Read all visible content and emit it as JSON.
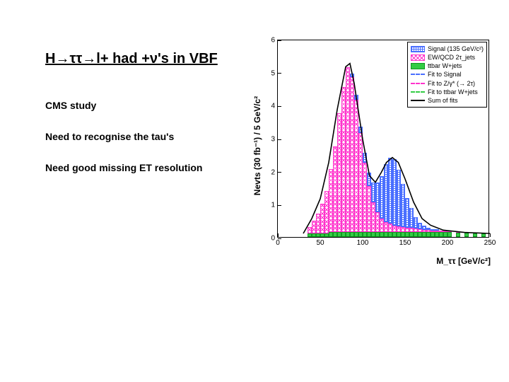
{
  "text": {
    "title": "H→ττ→l+ had +ν's in VBF",
    "note1": "CMS study",
    "note2": "Need to recognise the tau's",
    "note3": "Need good missing ET resolution"
  },
  "chart": {
    "type": "stacked-histogram",
    "x_label": "M_ττ [GeV/c²]",
    "y_label": "Nevts (30 fb⁻¹) / 5 GeV/c²",
    "xlim": [
      0,
      250
    ],
    "ylim": [
      0,
      6
    ],
    "x_ticks": [
      0,
      50,
      100,
      150,
      200,
      250
    ],
    "y_ticks": [
      0,
      1,
      2,
      3,
      4,
      5,
      6
    ],
    "bin_width": 5,
    "series_order": [
      "ttbar",
      "ewqcd",
      "signal"
    ],
    "colors": {
      "signal": "#4a6fff",
      "ewqcd": "#ff33cc",
      "ttbar": "#33cc44",
      "fit_signal": "#4a6fff",
      "fit_zgamma": "#ff33cc",
      "fit_ttbar": "#33cc44",
      "fit_sum": "#000000",
      "background": "#ffffff",
      "axis": "#000000"
    },
    "bins": [
      {
        "x": 35,
        "ttbar": 0.1,
        "ewqcd": 0.2,
        "signal": 0.0
      },
      {
        "x": 40,
        "ttbar": 0.1,
        "ewqcd": 0.4,
        "signal": 0.0
      },
      {
        "x": 45,
        "ttbar": 0.1,
        "ewqcd": 0.6,
        "signal": 0.0
      },
      {
        "x": 50,
        "ttbar": 0.1,
        "ewqcd": 0.9,
        "signal": 0.0
      },
      {
        "x": 55,
        "ttbar": 0.1,
        "ewqcd": 1.3,
        "signal": 0.0
      },
      {
        "x": 60,
        "ttbar": 0.15,
        "ewqcd": 1.9,
        "signal": 0.0
      },
      {
        "x": 65,
        "ttbar": 0.15,
        "ewqcd": 2.6,
        "signal": 0.0
      },
      {
        "x": 70,
        "ttbar": 0.15,
        "ewqcd": 3.6,
        "signal": 0.0
      },
      {
        "x": 75,
        "ttbar": 0.15,
        "ewqcd": 4.4,
        "signal": 0.0
      },
      {
        "x": 80,
        "ttbar": 0.15,
        "ewqcd": 5.0,
        "signal": 0.0
      },
      {
        "x": 85,
        "ttbar": 0.15,
        "ewqcd": 4.7,
        "signal": 0.1
      },
      {
        "x": 90,
        "ttbar": 0.15,
        "ewqcd": 4.0,
        "signal": 0.15
      },
      {
        "x": 95,
        "ttbar": 0.15,
        "ewqcd": 3.0,
        "signal": 0.2
      },
      {
        "x": 100,
        "ttbar": 0.15,
        "ewqcd": 2.1,
        "signal": 0.3
      },
      {
        "x": 105,
        "ttbar": 0.15,
        "ewqcd": 1.4,
        "signal": 0.4
      },
      {
        "x": 110,
        "ttbar": 0.15,
        "ewqcd": 0.9,
        "signal": 0.6
      },
      {
        "x": 115,
        "ttbar": 0.15,
        "ewqcd": 0.6,
        "signal": 0.9
      },
      {
        "x": 120,
        "ttbar": 0.15,
        "ewqcd": 0.4,
        "signal": 1.3
      },
      {
        "x": 125,
        "ttbar": 0.15,
        "ewqcd": 0.3,
        "signal": 1.75
      },
      {
        "x": 130,
        "ttbar": 0.15,
        "ewqcd": 0.25,
        "signal": 2.0
      },
      {
        "x": 135,
        "ttbar": 0.15,
        "ewqcd": 0.2,
        "signal": 2.0
      },
      {
        "x": 140,
        "ttbar": 0.15,
        "ewqcd": 0.18,
        "signal": 1.7
      },
      {
        "x": 145,
        "ttbar": 0.15,
        "ewqcd": 0.15,
        "signal": 1.3
      },
      {
        "x": 150,
        "ttbar": 0.15,
        "ewqcd": 0.13,
        "signal": 0.9
      },
      {
        "x": 155,
        "ttbar": 0.15,
        "ewqcd": 0.12,
        "signal": 0.6
      },
      {
        "x": 160,
        "ttbar": 0.15,
        "ewqcd": 0.1,
        "signal": 0.35
      },
      {
        "x": 165,
        "ttbar": 0.15,
        "ewqcd": 0.08,
        "signal": 0.2
      },
      {
        "x": 170,
        "ttbar": 0.15,
        "ewqcd": 0.07,
        "signal": 0.12
      },
      {
        "x": 175,
        "ttbar": 0.15,
        "ewqcd": 0.06,
        "signal": 0.07
      },
      {
        "x": 180,
        "ttbar": 0.15,
        "ewqcd": 0.05,
        "signal": 0.04
      },
      {
        "x": 185,
        "ttbar": 0.15,
        "ewqcd": 0.04,
        "signal": 0.02
      },
      {
        "x": 190,
        "ttbar": 0.15,
        "ewqcd": 0.03,
        "signal": 0.0
      },
      {
        "x": 195,
        "ttbar": 0.15,
        "ewqcd": 0.03,
        "signal": 0.0
      },
      {
        "x": 200,
        "ttbar": 0.15,
        "ewqcd": 0.02,
        "signal": 0.0
      },
      {
        "x": 210,
        "ttbar": 0.13,
        "ewqcd": 0.01,
        "signal": 0.0
      },
      {
        "x": 220,
        "ttbar": 0.12,
        "ewqcd": 0.0,
        "signal": 0.0
      },
      {
        "x": 230,
        "ttbar": 0.11,
        "ewqcd": 0.0,
        "signal": 0.0
      },
      {
        "x": 240,
        "ttbar": 0.1,
        "ewqcd": 0.0,
        "signal": 0.0
      }
    ],
    "fit_sum_curve": [
      [
        30,
        0.15
      ],
      [
        40,
        0.6
      ],
      [
        50,
        1.2
      ],
      [
        60,
        2.3
      ],
      [
        70,
        3.9
      ],
      [
        80,
        5.2
      ],
      [
        85,
        5.3
      ],
      [
        90,
        4.7
      ],
      [
        100,
        3.0
      ],
      [
        108,
        1.9
      ],
      [
        115,
        1.7
      ],
      [
        122,
        2.0
      ],
      [
        128,
        2.3
      ],
      [
        135,
        2.45
      ],
      [
        142,
        2.3
      ],
      [
        150,
        1.8
      ],
      [
        160,
        1.1
      ],
      [
        170,
        0.6
      ],
      [
        180,
        0.4
      ],
      [
        195,
        0.25
      ],
      [
        220,
        0.18
      ],
      [
        250,
        0.15
      ]
    ],
    "legend": {
      "items": [
        {
          "key": "signal",
          "label": "Signal (135 GeV/c²)",
          "type": "box"
        },
        {
          "key": "ewqcd",
          "label": "EW/QCD 2τ_jets",
          "type": "box"
        },
        {
          "key": "ttbar",
          "label": "ttbar W+jets",
          "type": "box"
        },
        {
          "key": "fit_signal",
          "label": "Fit to Signal",
          "type": "dash"
        },
        {
          "key": "fit_zgamma",
          "label": "Fit to Z/γ* (→ 2τ)",
          "type": "dash"
        },
        {
          "key": "fit_ttbar",
          "label": "Fit to ttbar W+jets",
          "type": "dash"
        },
        {
          "key": "fit_sum",
          "label": "Sum of fits",
          "type": "solid"
        }
      ]
    }
  }
}
